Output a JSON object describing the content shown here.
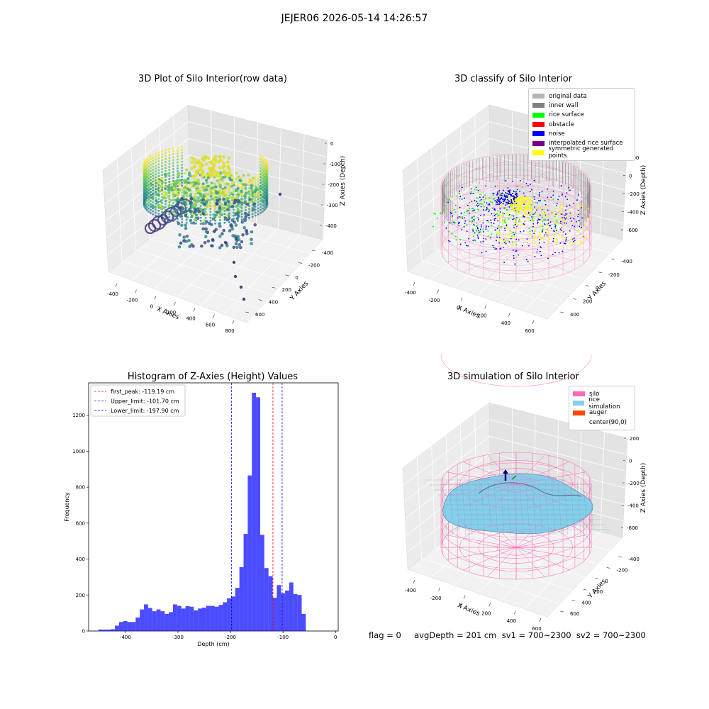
{
  "suptitle": "JEJER06 2026-05-14 14:26:57",
  "panels": {
    "raw": {
      "title": "3D Plot of Silo Interior(row data)",
      "xlabel": "X Axies",
      "ylabel": "Y Axies",
      "zlabel": "Z Axies (Depth)",
      "xticks": [
        "-400",
        "-200",
        "0",
        "200",
        "400",
        "600",
        "800"
      ],
      "yticks": [
        "-400",
        "-200",
        "0",
        "200",
        "400",
        "600"
      ],
      "zticks": [
        "0",
        "-100",
        "-200",
        "-300",
        "-400"
      ]
    },
    "classify": {
      "title": "3D classify of Silo Interior",
      "xlabel": "X Axies",
      "ylabel": "Y Axies",
      "zlabel": "Z Axies (Depth)",
      "xticks": [
        "-400",
        "-200",
        "0",
        "200",
        "400",
        "600"
      ],
      "yticks": [
        "-400",
        "-200",
        "0",
        "200",
        "400"
      ],
      "zticks": [
        "200",
        "0",
        "-200",
        "-400",
        "-600"
      ],
      "legend": [
        {
          "label": "original data",
          "color": "#b4b4b4"
        },
        {
          "label": "inner wall",
          "color": "#808080"
        },
        {
          "label": "rice surface",
          "color": "#00ff00"
        },
        {
          "label": "obstacle",
          "color": "#ff0000"
        },
        {
          "label": "noise",
          "color": "#0000ff"
        },
        {
          "label": "interpolated rice surface",
          "color": "#800080"
        },
        {
          "label": "symmetric generated points",
          "color": "#ffff00"
        }
      ]
    },
    "simulation": {
      "title": "3D simulation of Silo Interior",
      "xlabel": "X Axies",
      "ylabel": "Y Axies",
      "zlabel": "Z Axies (Depth)",
      "xticks": [
        "-400",
        "-200",
        "0",
        "200",
        "400",
        "600"
      ],
      "yticks": [
        "-400",
        "-200",
        "0",
        "200",
        "400",
        "600"
      ],
      "zticks": [
        "200",
        "0",
        "-200",
        "-400",
        "-600"
      ],
      "legend": [
        {
          "label": "silo",
          "color": "#ff69b4"
        },
        {
          "label": "rice simulation",
          "color": "#87ceeb"
        },
        {
          "label": "auger",
          "color": "#ff4500"
        },
        {
          "label": "center(90,0)",
          "color": "#ffffff"
        }
      ]
    }
  },
  "footer": "flag = 0     avgDepth = 201 cm  sv1 = 700~2300  sv2 = 700~2300",
  "chart_data": {
    "type": "bar",
    "title": "Histogram of Z-Axies (Height) Values",
    "xlabel": "Depth (cm)",
    "ylabel": "Frequency",
    "xlim": [
      -470,
      5
    ],
    "ylim": [
      0,
      1380
    ],
    "xticks": [
      -400,
      -300,
      -200,
      -100,
      0
    ],
    "yticks": [
      0,
      200,
      400,
      600,
      800,
      1000,
      1200
    ],
    "bar_color": "#0000ff",
    "bin_width": 7.9,
    "bin_start": -420,
    "values": [
      8,
      8,
      8,
      10,
      30,
      50,
      55,
      50,
      50,
      75,
      120,
      148,
      128,
      110,
      120,
      110,
      95,
      105,
      148,
      140,
      125,
      138,
      135,
      115,
      125,
      130,
      140,
      140,
      135,
      145,
      160,
      182,
      192,
      240,
      355,
      540,
      865,
      1325,
      1300,
      535,
      350,
      305,
      185,
      255,
      210,
      225,
      270,
      205,
      200,
      95
    ],
    "reference_lines": [
      {
        "label": "first_peak: -119.19 cm",
        "x": -119.19,
        "color": "#ff0000"
      },
      {
        "label": "Upper_limit: -101.70 cm",
        "x": -101.7,
        "color": "#0000ff"
      },
      {
        "label": "Lower_limit: -197.90 cm",
        "x": -197.9,
        "color": "#0000ff"
      }
    ],
    "legend_position": "upper-left"
  }
}
